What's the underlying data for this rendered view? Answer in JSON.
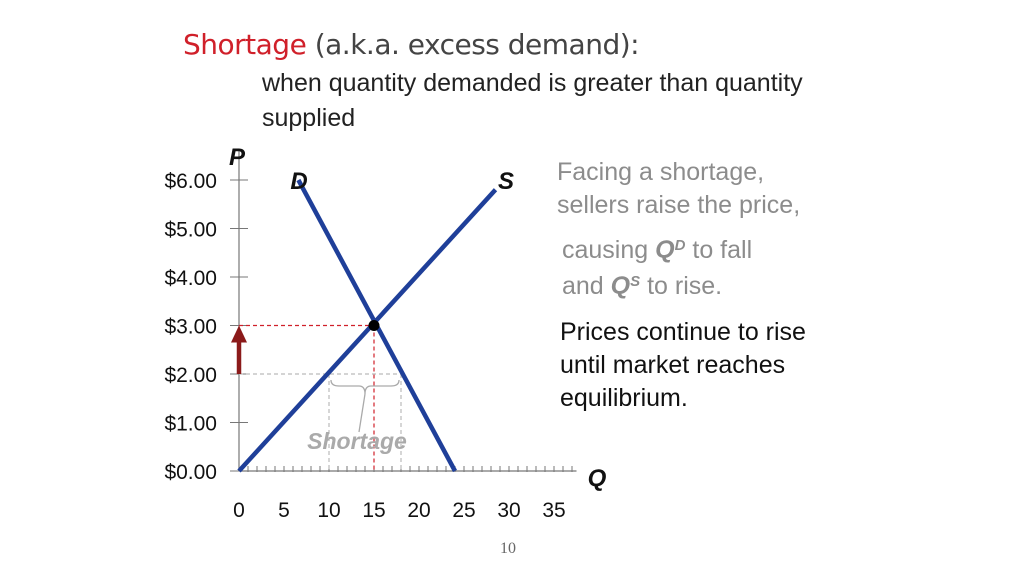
{
  "title": {
    "main": "Shortage",
    "paren": "(a.k.a. excess demand):"
  },
  "subtitle": "when quantity demanded is greater than quantity supplied",
  "notes": {
    "note1_line1": "Facing a shortage,",
    "note1_line2": "sellers raise the price,",
    "note2_pre": "causing ",
    "note2_q": "Q",
    "note2_sup": "D",
    "note2_post": " to fall",
    "note3_pre": "and ",
    "note3_q": "Q",
    "note3_sup": "S",
    "note3_post": " to rise.",
    "note4_line1": "Prices continue to rise",
    "note4_line2": "until market reaches",
    "note4_line3": "equilibrium."
  },
  "page_number": "10",
  "colors": {
    "curve": "#1f3f99",
    "accent": "#d0202a",
    "arrow": "#8b1a1a",
    "gray_text": "#8c8c8c"
  },
  "chart_data": {
    "type": "line",
    "xlabel": "Q",
    "ylabel": "P",
    "x_ticks": [
      "0",
      "5",
      "10",
      "15",
      "20",
      "25",
      "30",
      "35"
    ],
    "x_tick_values": [
      0,
      5,
      10,
      15,
      20,
      25,
      30,
      35
    ],
    "y_ticks": [
      "$0.00",
      "$1.00",
      "$2.00",
      "$3.00",
      "$4.00",
      "$5.00",
      "$6.00"
    ],
    "y_tick_values": [
      0,
      1,
      2,
      3,
      4,
      5,
      6
    ],
    "xlim": [
      0,
      37
    ],
    "ylim": [
      0,
      6.5
    ],
    "series": [
      {
        "name": "D",
        "x": [
          6.6,
          24
        ],
        "y": [
          6,
          0
        ]
      },
      {
        "name": "S",
        "x": [
          0,
          28.5
        ],
        "y": [
          0,
          5.8
        ]
      }
    ],
    "equilibrium": {
      "x": 15,
      "y": 3
    },
    "price_floor_line": 2,
    "shortage_range": [
      10,
      18
    ],
    "shortage_label": "Shortage",
    "price_arrow": {
      "from": 2,
      "to": 3
    }
  }
}
